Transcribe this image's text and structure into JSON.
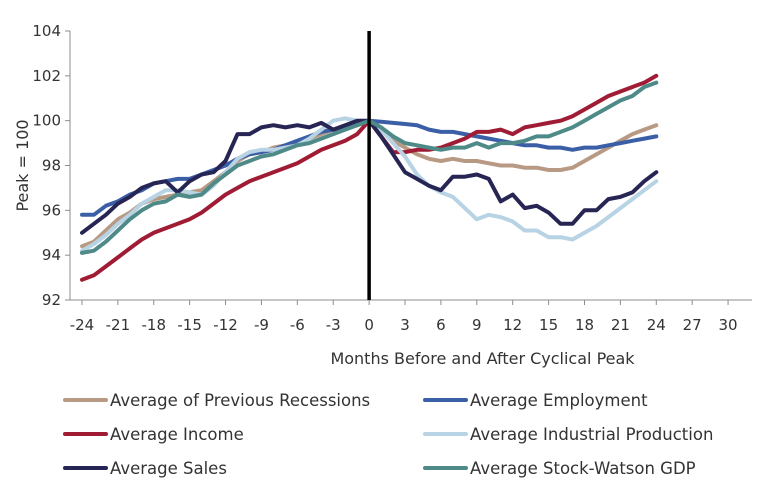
{
  "chart_data": {
    "type": "line",
    "title": "",
    "xlabel": "Months Before and After Cyclical Peak",
    "ylabel": "Peak = 100",
    "xlim": [
      -25,
      32
    ],
    "ylim": [
      92,
      104
    ],
    "xticks": [
      -24,
      -21,
      -18,
      -15,
      -12,
      -9,
      -6,
      -3,
      0,
      3,
      6,
      9,
      12,
      15,
      18,
      21,
      24,
      27,
      30
    ],
    "yticks": [
      92,
      94,
      96,
      98,
      100,
      102,
      104
    ],
    "grid": false,
    "legend_position": "bottom",
    "peak_marker_x": 0,
    "x": [
      -24,
      -23,
      -22,
      -21,
      -20,
      -19,
      -18,
      -17,
      -16,
      -15,
      -14,
      -13,
      -12,
      -11,
      -10,
      -9,
      -8,
      -7,
      -6,
      -5,
      -4,
      -3,
      -2,
      -1,
      0,
      1,
      2,
      3,
      4,
      5,
      6,
      7,
      8,
      9,
      10,
      11,
      12,
      13,
      14,
      15,
      16,
      17,
      18,
      19,
      20,
      21,
      22,
      23,
      24
    ],
    "series": [
      {
        "name": "Average of Previous Recessions",
        "color": "#b89a84",
        "values": [
          94.4,
          94.6,
          95.1,
          95.6,
          95.9,
          96.3,
          96.5,
          96.6,
          96.7,
          96.8,
          96.9,
          97.3,
          97.7,
          98.2,
          98.5,
          98.6,
          98.8,
          98.9,
          99.0,
          99.2,
          99.4,
          99.6,
          99.7,
          99.8,
          100.0,
          99.6,
          99.1,
          98.8,
          98.5,
          98.3,
          98.2,
          98.3,
          98.2,
          98.2,
          98.1,
          98.0,
          98.0,
          97.9,
          97.9,
          97.8,
          97.8,
          97.9,
          98.2,
          98.5,
          98.8,
          99.1,
          99.4,
          99.6,
          99.8
        ]
      },
      {
        "name": "Average Employment",
        "color": "#3b5fa6",
        "values": [
          95.8,
          95.8,
          96.2,
          96.4,
          96.7,
          96.9,
          97.2,
          97.3,
          97.4,
          97.4,
          97.6,
          97.8,
          98.0,
          98.3,
          98.5,
          98.6,
          98.7,
          98.9,
          99.1,
          99.3,
          99.5,
          99.6,
          99.7,
          99.9,
          100.0,
          99.95,
          99.9,
          99.85,
          99.8,
          99.6,
          99.5,
          99.5,
          99.4,
          99.3,
          99.2,
          99.1,
          99.0,
          98.9,
          98.9,
          98.8,
          98.8,
          98.7,
          98.8,
          98.8,
          98.9,
          99.0,
          99.1,
          99.2,
          99.3
        ]
      },
      {
        "name": "Average Income",
        "color": "#a01c34",
        "values": [
          92.9,
          93.1,
          93.5,
          93.9,
          94.3,
          94.7,
          95.0,
          95.2,
          95.4,
          95.6,
          95.9,
          96.3,
          96.7,
          97.0,
          97.3,
          97.5,
          97.7,
          97.9,
          98.1,
          98.4,
          98.7,
          98.9,
          99.1,
          99.4,
          100.0,
          99.3,
          98.6,
          98.6,
          98.7,
          98.7,
          98.8,
          99.0,
          99.2,
          99.5,
          99.5,
          99.6,
          99.4,
          99.7,
          99.8,
          99.9,
          100.0,
          100.2,
          100.5,
          100.8,
          101.1,
          101.3,
          101.5,
          101.7,
          102.0
        ]
      },
      {
        "name": "Average Industrial Production",
        "color": "#b7d3e4",
        "values": [
          94.2,
          94.5,
          94.9,
          95.4,
          95.8,
          96.3,
          96.6,
          96.9,
          96.9,
          96.8,
          96.7,
          97.1,
          97.7,
          98.3,
          98.6,
          98.7,
          98.7,
          98.8,
          98.9,
          99.2,
          99.6,
          100.0,
          100.1,
          100.0,
          100.0,
          99.6,
          99.0,
          98.4,
          97.6,
          97.1,
          96.8,
          96.6,
          96.1,
          95.6,
          95.8,
          95.7,
          95.5,
          95.1,
          95.1,
          94.8,
          94.8,
          94.7,
          95.0,
          95.3,
          95.7,
          96.1,
          96.5,
          96.9,
          97.3
        ]
      },
      {
        "name": "Average Sales",
        "color": "#262554",
        "values": [
          95.0,
          95.4,
          95.8,
          96.3,
          96.6,
          97.0,
          97.2,
          97.3,
          96.8,
          97.3,
          97.6,
          97.7,
          98.2,
          99.4,
          99.4,
          99.7,
          99.8,
          99.7,
          99.8,
          99.7,
          99.9,
          99.6,
          99.8,
          100.0,
          100.0,
          99.3,
          98.5,
          97.7,
          97.4,
          97.1,
          96.9,
          97.5,
          97.5,
          97.6,
          97.4,
          96.4,
          96.7,
          96.1,
          96.2,
          95.9,
          95.4,
          95.4,
          96.0,
          96.0,
          96.5,
          96.6,
          96.8,
          97.3,
          97.7
        ]
      },
      {
        "name": "Average Stock-Watson GDP",
        "color": "#4e8a88",
        "values": [
          94.1,
          94.2,
          94.6,
          95.1,
          95.6,
          96.0,
          96.3,
          96.4,
          96.7,
          96.6,
          96.7,
          97.2,
          97.6,
          98.0,
          98.2,
          98.4,
          98.5,
          98.7,
          98.9,
          99.0,
          99.2,
          99.4,
          99.6,
          99.8,
          100.0,
          99.7,
          99.3,
          99.0,
          98.9,
          98.8,
          98.7,
          98.8,
          98.8,
          99.0,
          98.8,
          99.0,
          99.0,
          99.1,
          99.3,
          99.3,
          99.5,
          99.7,
          100.0,
          100.3,
          100.6,
          100.9,
          101.1,
          101.5,
          101.7
        ]
      }
    ]
  }
}
